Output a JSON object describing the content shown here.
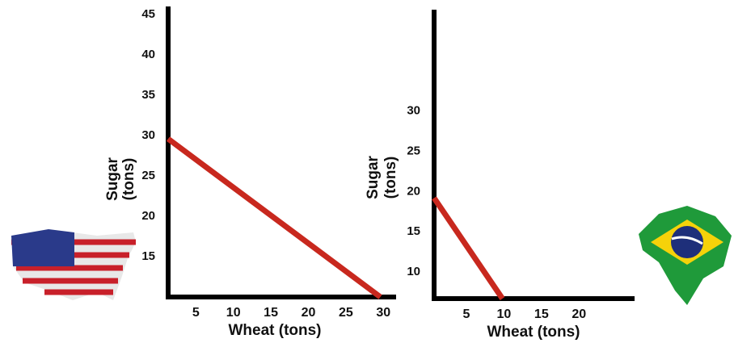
{
  "chart_data": [
    {
      "type": "line",
      "x_label": "Wheat (tons)",
      "y_label": [
        "Sugar",
        "(tons)"
      ],
      "x": [
        1.3,
        29.6
      ],
      "values": [
        29.6,
        10
      ],
      "color": "#c8281e",
      "xlim": [
        1.3,
        31.7
      ],
      "ylim": [
        10,
        46
      ],
      "xticks": [
        5,
        10,
        15,
        20,
        25,
        30
      ],
      "yticks": [
        15,
        20,
        25,
        30,
        35,
        40,
        45
      ]
    },
    {
      "type": "line",
      "x_label": "Wheat (tons)",
      "y_label": [
        "Sugar",
        "(tons)"
      ],
      "x": [
        0.7,
        9.8
      ],
      "values": [
        19.2,
        6.7
      ],
      "color": "#c8281e",
      "xlim": [
        0.7,
        27.4
      ],
      "ylim": [
        6.7,
        42.6
      ],
      "xticks": [
        5,
        10,
        15,
        20
      ],
      "yticks": [
        10,
        15,
        20,
        25,
        30
      ]
    }
  ]
}
